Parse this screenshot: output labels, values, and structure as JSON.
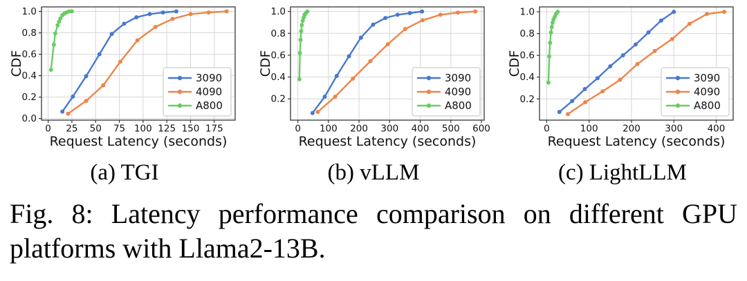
{
  "figure": {
    "caption_line1": "Fig. 8: Latency performance comparison on different GPU",
    "caption_line2": "platforms with Llama2-13B."
  },
  "style": {
    "grid_color": "#d6d6d6",
    "spine_color": "#454545",
    "tick_color": "#333333",
    "legend_border": "#cccccc",
    "legend_bg": "#ffffff",
    "palette": {
      "blue": "#4878d0",
      "orange": "#ee854a",
      "green": "#6acc64"
    }
  },
  "chart_data": [
    {
      "type": "line",
      "caption": "(a) TGI",
      "xlabel": "Request Latency (seconds)",
      "ylabel": "CDF",
      "xlim": [
        -7,
        197
      ],
      "ylim": [
        -0.015,
        1.042
      ],
      "xticks": [
        0,
        25,
        50,
        75,
        100,
        125,
        150,
        175
      ],
      "yticks": [
        0.0,
        0.2,
        0.4,
        0.6,
        0.8,
        1.0
      ],
      "grid": true,
      "legend_position": "lower right",
      "series": [
        {
          "name": "3090",
          "color": "#4878d0",
          "x": [
            15,
            26,
            40,
            54,
            67,
            80,
            93,
            107,
            121,
            135
          ],
          "y": [
            0.065,
            0.205,
            0.395,
            0.6,
            0.79,
            0.885,
            0.945,
            0.975,
            0.99,
            1.0
          ]
        },
        {
          "name": "4090",
          "color": "#ee854a",
          "x": [
            21,
            40,
            58,
            76,
            94,
            113,
            131,
            150,
            169,
            188
          ],
          "y": [
            0.045,
            0.165,
            0.31,
            0.53,
            0.73,
            0.855,
            0.93,
            0.975,
            0.99,
            1.0
          ]
        },
        {
          "name": "A800",
          "color": "#6acc64",
          "x": [
            3,
            6,
            7.5,
            10,
            11.5,
            13,
            15,
            17,
            19,
            22,
            25
          ],
          "y": [
            0.455,
            0.69,
            0.795,
            0.87,
            0.905,
            0.935,
            0.965,
            0.98,
            0.99,
            1.0,
            1.0
          ]
        }
      ]
    },
    {
      "type": "line",
      "caption": "(b) vLLM",
      "xlabel": "Request Latency (seconds)",
      "ylabel": "CDF",
      "xlim": [
        -24,
        609
      ],
      "ylim": [
        0.005,
        1.042
      ],
      "xticks": [
        0,
        100,
        200,
        300,
        400,
        500,
        600
      ],
      "yticks": [
        0.2,
        0.4,
        0.6,
        0.8,
        1.0
      ],
      "grid": true,
      "legend_position": "lower right",
      "series": [
        {
          "name": "3090",
          "color": "#4878d0",
          "x": [
            48,
            88,
            127,
            167,
            206,
            246,
            286,
            326,
            366,
            406
          ],
          "y": [
            0.07,
            0.22,
            0.41,
            0.59,
            0.76,
            0.88,
            0.94,
            0.97,
            0.985,
            1.0
          ]
        },
        {
          "name": "4090",
          "color": "#ee854a",
          "x": [
            65,
            122,
            180,
            237,
            294,
            351,
            408,
            466,
            523,
            580
          ],
          "y": [
            0.08,
            0.22,
            0.385,
            0.545,
            0.7,
            0.84,
            0.92,
            0.97,
            0.99,
            1.0
          ]
        },
        {
          "name": "A800",
          "color": "#6acc64",
          "x": [
            5,
            7,
            9,
            11,
            13,
            16,
            19,
            22,
            26,
            31
          ],
          "y": [
            0.38,
            0.62,
            0.74,
            0.82,
            0.875,
            0.915,
            0.945,
            0.97,
            0.985,
            1.0
          ]
        }
      ]
    },
    {
      "type": "line",
      "caption": "(c) LightLLM",
      "xlabel": "Request Latency (seconds)",
      "ylabel": "CDF",
      "xlim": [
        -17,
        440
      ],
      "ylim": [
        0.005,
        1.045
      ],
      "xticks": [
        0,
        100,
        200,
        300,
        400
      ],
      "yticks": [
        0.2,
        0.4,
        0.6,
        0.8,
        1.0
      ],
      "grid": true,
      "legend_position": "lower right",
      "series": [
        {
          "name": "3090",
          "color": "#4878d0",
          "x": [
            30,
            60,
            90,
            120,
            150,
            180,
            210,
            240,
            270,
            300
          ],
          "y": [
            0.08,
            0.18,
            0.29,
            0.39,
            0.5,
            0.6,
            0.7,
            0.81,
            0.92,
            1.0
          ]
        },
        {
          "name": "4090",
          "color": "#ee854a",
          "x": [
            50,
            91,
            132,
            173,
            214,
            255,
            296,
            337,
            378,
            419
          ],
          "y": [
            0.06,
            0.17,
            0.27,
            0.375,
            0.52,
            0.64,
            0.75,
            0.89,
            0.98,
            1.0
          ]
        },
        {
          "name": "A800",
          "color": "#6acc64",
          "x": [
            4,
            6,
            8,
            10,
            12,
            14,
            16,
            19,
            22,
            26
          ],
          "y": [
            0.35,
            0.59,
            0.715,
            0.81,
            0.86,
            0.9,
            0.93,
            0.955,
            0.98,
            1.0
          ]
        }
      ]
    }
  ]
}
